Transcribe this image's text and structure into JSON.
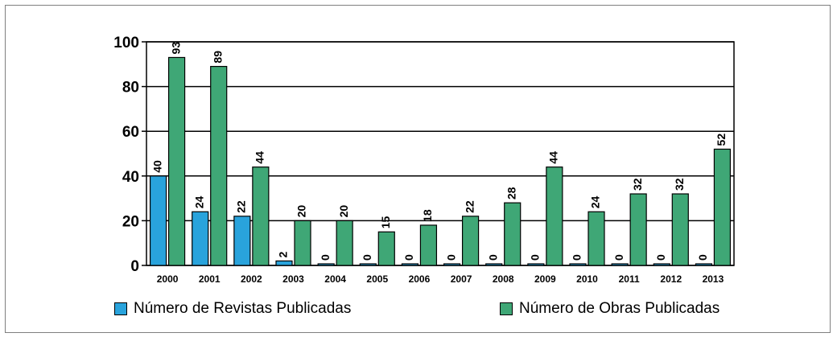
{
  "chart_data": {
    "type": "bar",
    "categories": [
      "2000",
      "2001",
      "2002",
      "2003",
      "2004",
      "2005",
      "2006",
      "2007",
      "2008",
      "2009",
      "2010",
      "2011",
      "2012",
      "2013"
    ],
    "series": [
      {
        "name": "Número de Revistas Publicadas",
        "color": "#29a3dc",
        "values": [
          40,
          24,
          22,
          2,
          0,
          0,
          0,
          0,
          0,
          0,
          0,
          0,
          0,
          0
        ]
      },
      {
        "name": "Número de Obras Publicadas",
        "color": "#3fa776",
        "values": [
          93,
          89,
          44,
          20,
          20,
          15,
          18,
          22,
          28,
          44,
          24,
          32,
          32,
          52
        ]
      }
    ],
    "yticks": [
      0,
      20,
      40,
      60,
      80,
      100
    ],
    "ylim": [
      0,
      100
    ],
    "grid": true,
    "legend_position": "bottom"
  }
}
